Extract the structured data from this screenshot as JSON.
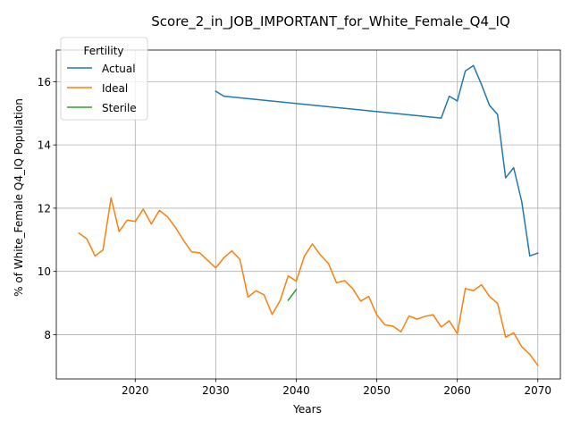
{
  "chart_data": {
    "type": "line",
    "title": "Score_2_in_JOB_IMPORTANT_for_White_Female_Q4_IQ",
    "xlabel": "Years",
    "ylabel": "% of White_Female Q4_IQ Population",
    "xlim": [
      2010.2,
      2072.8
    ],
    "ylim": [
      6.6,
      17.0
    ],
    "xticks": [
      2020,
      2030,
      2040,
      2050,
      2060,
      2070
    ],
    "yticks": [
      8,
      10,
      12,
      14,
      16
    ],
    "grid": true,
    "legend": {
      "title": "Fertility",
      "placement": "top-left"
    },
    "series": [
      {
        "name": "Actual",
        "color": "#1f77b4",
        "x": [
          2030,
          2031,
          2058,
          2059,
          2060,
          2061,
          2062,
          2063,
          2064,
          2065,
          2066,
          2067,
          2068,
          2069,
          2070
        ],
        "y": [
          15.7,
          15.54,
          14.85,
          15.54,
          15.39,
          16.34,
          16.51,
          15.91,
          15.25,
          14.96,
          12.96,
          13.28,
          12.21,
          10.49,
          10.58
        ]
      },
      {
        "name": "Ideal",
        "color": "#ff7f0e",
        "x": [
          2013,
          2014,
          2015,
          2016,
          2017,
          2018,
          2019,
          2020,
          2021,
          2022,
          2023,
          2024,
          2025,
          2026,
          2027,
          2028,
          2029,
          2030,
          2031,
          2032,
          2033,
          2034,
          2035,
          2036,
          2037,
          2038,
          2039,
          2040,
          2041,
          2042,
          2043,
          2044,
          2045,
          2046,
          2047,
          2048,
          2049,
          2050,
          2051,
          2052,
          2053,
          2054,
          2055,
          2056,
          2057,
          2058,
          2059,
          2060,
          2061,
          2062,
          2063,
          2064,
          2065,
          2066,
          2067,
          2068,
          2069,
          2070
        ],
        "y": [
          11.21,
          11.03,
          10.49,
          10.68,
          12.33,
          11.26,
          11.62,
          11.58,
          11.97,
          11.5,
          11.93,
          11.73,
          11.39,
          10.98,
          10.62,
          10.59,
          10.35,
          10.11,
          10.43,
          10.65,
          10.38,
          9.19,
          9.39,
          9.26,
          8.64,
          9.08,
          9.86,
          9.69,
          10.48,
          10.87,
          10.52,
          10.25,
          9.64,
          9.71,
          9.46,
          9.06,
          9.21,
          8.63,
          8.31,
          8.27,
          8.09,
          8.59,
          8.49,
          8.58,
          8.63,
          8.24,
          8.44,
          8.03,
          9.46,
          9.39,
          9.58,
          9.21,
          8.99,
          7.92,
          8.06,
          7.62,
          7.38,
          7.03
        ]
      },
      {
        "name": "Sterile",
        "color": "#2ca02c",
        "x": [
          2039,
          2040
        ],
        "y": [
          9.09,
          9.43
        ]
      }
    ]
  }
}
